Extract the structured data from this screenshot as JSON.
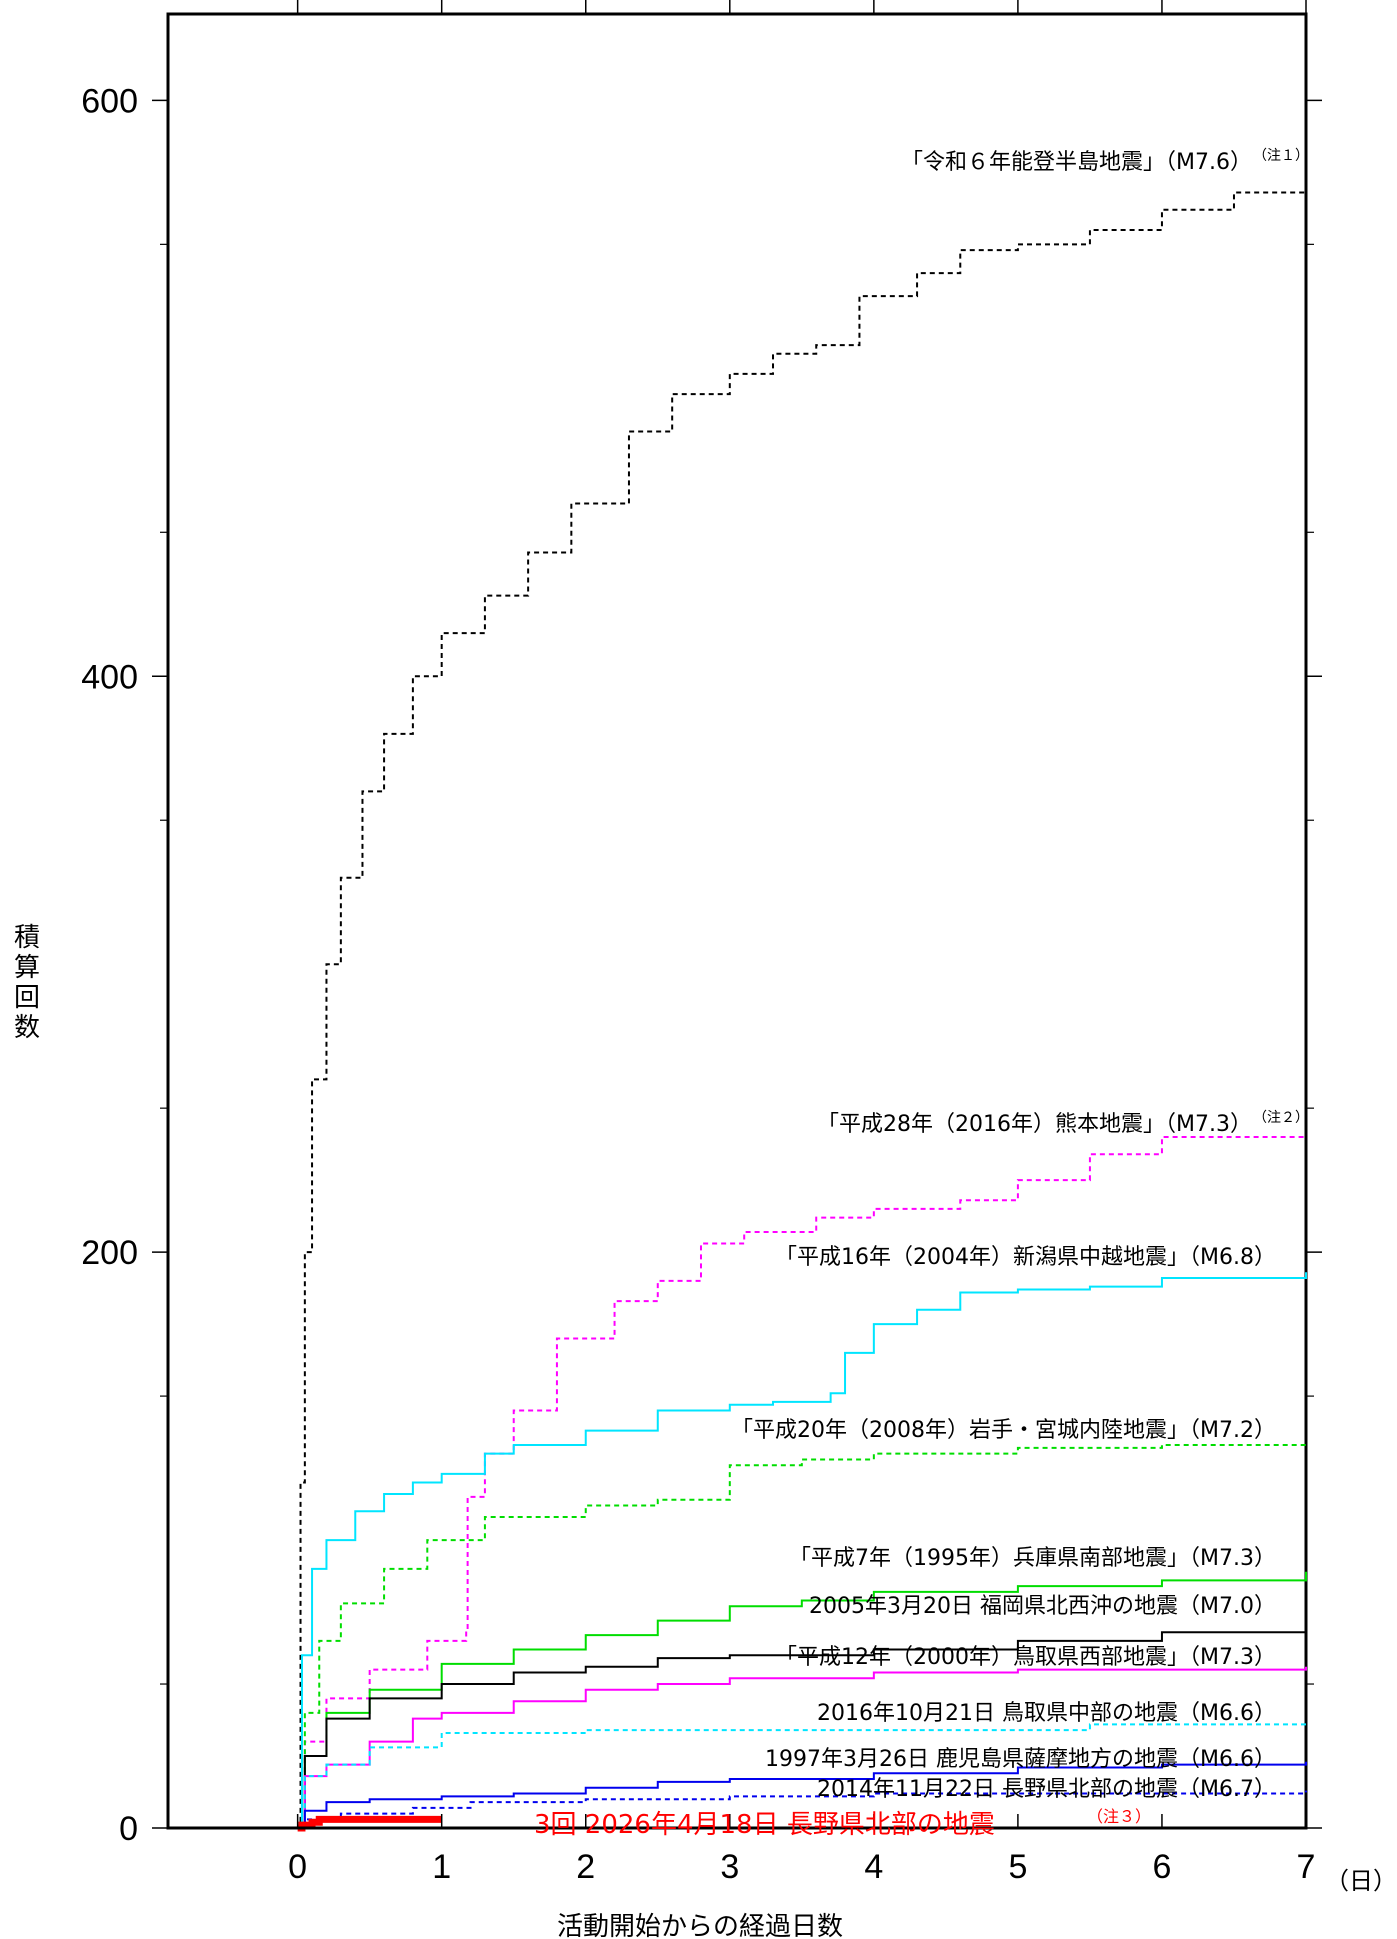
{
  "chart_data": {
    "type": "line",
    "xlabel": "活動開始からの経過日数",
    "xunit": "（日）",
    "ylabel": [
      "積",
      "算",
      "回",
      "数"
    ],
    "xlim": [
      -0.9,
      7
    ],
    "ylim": [
      0,
      630
    ],
    "x_ticks": [
      0,
      1,
      2,
      3,
      4,
      5,
      6,
      7
    ],
    "x_tick_labels": [
      "0",
      "1",
      "2",
      "3",
      "4",
      "5",
      "6",
      "7"
    ],
    "y_ticks": [
      0,
      200,
      400,
      600
    ],
    "y_tick_labels": [
      "0",
      "200",
      "400",
      "600"
    ],
    "grid": false,
    "series": [
      {
        "name": "「令和６年能登半島地震」（M7.6）",
        "note": "（注１）",
        "color": "#000000",
        "dash": "dashed",
        "points": [
          [
            0,
            0
          ],
          [
            0.02,
            120
          ],
          [
            0.05,
            200
          ],
          [
            0.1,
            260
          ],
          [
            0.2,
            300
          ],
          [
            0.3,
            330
          ],
          [
            0.45,
            360
          ],
          [
            0.6,
            380
          ],
          [
            0.8,
            400
          ],
          [
            1.0,
            415
          ],
          [
            1.3,
            428
          ],
          [
            1.6,
            443
          ],
          [
            1.9,
            460
          ],
          [
            2.3,
            485
          ],
          [
            2.6,
            498
          ],
          [
            3.0,
            505
          ],
          [
            3.3,
            512
          ],
          [
            3.6,
            515
          ],
          [
            3.9,
            532
          ],
          [
            4.3,
            540
          ],
          [
            4.6,
            548
          ],
          [
            5.0,
            550
          ],
          [
            5.5,
            555
          ],
          [
            6.0,
            562
          ],
          [
            6.5,
            568
          ],
          [
            7.0,
            571
          ]
        ]
      },
      {
        "name": "「平成28年（2016年）熊本地震」（M7.3）",
        "note": "（注２）",
        "color": "#ff00ff",
        "dash": "dashed",
        "points": [
          [
            0,
            0
          ],
          [
            0.05,
            30
          ],
          [
            0.2,
            45
          ],
          [
            0.5,
            55
          ],
          [
            0.9,
            65
          ],
          [
            1.17,
            69
          ],
          [
            1.18,
            115
          ],
          [
            1.3,
            130
          ],
          [
            1.5,
            145
          ],
          [
            1.8,
            170
          ],
          [
            2.2,
            183
          ],
          [
            2.5,
            190
          ],
          [
            2.8,
            203
          ],
          [
            3.1,
            207
          ],
          [
            3.6,
            212
          ],
          [
            4.0,
            215
          ],
          [
            4.6,
            218
          ],
          [
            5.0,
            225
          ],
          [
            5.5,
            234
          ],
          [
            6.0,
            240
          ],
          [
            7.0,
            240
          ]
        ]
      },
      {
        "name": "「平成16年（2004年）新潟県中越地震」（M6.8）",
        "color": "#00e5ff",
        "dash": "solid",
        "points": [
          [
            0,
            0
          ],
          [
            0.03,
            60
          ],
          [
            0.1,
            90
          ],
          [
            0.2,
            100
          ],
          [
            0.4,
            110
          ],
          [
            0.6,
            116
          ],
          [
            0.8,
            120
          ],
          [
            1.0,
            123
          ],
          [
            1.3,
            130
          ],
          [
            1.5,
            133
          ],
          [
            2.0,
            138
          ],
          [
            2.5,
            145
          ],
          [
            3.0,
            147
          ],
          [
            3.3,
            148
          ],
          [
            3.7,
            151
          ],
          [
            3.8,
            165
          ],
          [
            4.0,
            175
          ],
          [
            4.3,
            180
          ],
          [
            4.6,
            186
          ],
          [
            5.0,
            187
          ],
          [
            5.5,
            188
          ],
          [
            6.0,
            191
          ],
          [
            7.0,
            193
          ]
        ]
      },
      {
        "name": "「平成20年（2008年）岩手・宮城内陸地震」（M7.2）",
        "color": "#00dd00",
        "dash": "dashed",
        "points": [
          [
            0,
            0
          ],
          [
            0.05,
            40
          ],
          [
            0.15,
            65
          ],
          [
            0.3,
            78
          ],
          [
            0.6,
            90
          ],
          [
            0.9,
            100
          ],
          [
            1.3,
            108
          ],
          [
            2.0,
            112
          ],
          [
            2.5,
            114
          ],
          [
            3.0,
            126
          ],
          [
            3.5,
            128
          ],
          [
            4.0,
            130
          ],
          [
            5.0,
            132
          ],
          [
            6.0,
            133
          ],
          [
            7.0,
            134
          ]
        ]
      },
      {
        "name": "「平成7年（1995年）兵庫県南部地震」（M7.3）",
        "color": "#00dd00",
        "dash": "solid",
        "points": [
          [
            0,
            0
          ],
          [
            0.05,
            25
          ],
          [
            0.2,
            40
          ],
          [
            0.5,
            48
          ],
          [
            1.0,
            57
          ],
          [
            1.5,
            62
          ],
          [
            2.0,
            67
          ],
          [
            2.5,
            72
          ],
          [
            3.0,
            77
          ],
          [
            3.5,
            79
          ],
          [
            4.0,
            82
          ],
          [
            5.0,
            84
          ],
          [
            6.0,
            86
          ],
          [
            7.0,
            89
          ]
        ]
      },
      {
        "name": "2005年3月20日 福岡県北西沖の地震（M7.0）",
        "color": "#000000",
        "dash": "solid",
        "points": [
          [
            0,
            0
          ],
          [
            0.05,
            25
          ],
          [
            0.2,
            38
          ],
          [
            0.5,
            45
          ],
          [
            1.0,
            50
          ],
          [
            1.5,
            54
          ],
          [
            2.0,
            56
          ],
          [
            2.5,
            59
          ],
          [
            3.0,
            60
          ],
          [
            4.0,
            62
          ],
          [
            5.0,
            65
          ],
          [
            6.0,
            68
          ],
          [
            7.0,
            72
          ]
        ]
      },
      {
        "name": "「平成12年（2000年）鳥取県西部地震」（M7.3）",
        "color": "#ff00ff",
        "dash": "solid",
        "points": [
          [
            0,
            0
          ],
          [
            0.05,
            18
          ],
          [
            0.2,
            22
          ],
          [
            0.5,
            30
          ],
          [
            0.8,
            38
          ],
          [
            1.0,
            40
          ],
          [
            1.5,
            44
          ],
          [
            2.0,
            48
          ],
          [
            2.5,
            50
          ],
          [
            3.0,
            52
          ],
          [
            4.0,
            54
          ],
          [
            5.0,
            55
          ],
          [
            6.0,
            55
          ],
          [
            7.0,
            56
          ]
        ]
      },
      {
        "name": "2016年10月21日 鳥取県中部の地震（M6.6）",
        "color": "#00e5ff",
        "dash": "dashed",
        "points": [
          [
            0,
            0
          ],
          [
            0.05,
            18
          ],
          [
            0.2,
            22
          ],
          [
            0.5,
            28
          ],
          [
            1.0,
            33
          ],
          [
            2.0,
            34
          ],
          [
            4.0,
            34
          ],
          [
            5.5,
            36
          ],
          [
            7.0,
            37
          ]
        ]
      },
      {
        "name": "1997年3月26日 鹿児島県薩摩地方の地震（M6.6）",
        "color": "#0000ee",
        "dash": "solid",
        "points": [
          [
            0,
            0
          ],
          [
            0.05,
            6
          ],
          [
            0.2,
            9
          ],
          [
            0.5,
            10
          ],
          [
            1.0,
            11
          ],
          [
            1.5,
            12
          ],
          [
            2.0,
            14
          ],
          [
            2.5,
            16
          ],
          [
            3.0,
            17
          ],
          [
            4.0,
            19
          ],
          [
            5.0,
            21
          ],
          [
            6.0,
            22
          ],
          [
            7.0,
            23
          ]
        ]
      },
      {
        "name": "2014年11月22日 長野県北部の地震（M6.7）",
        "color": "#0000ee",
        "dash": "dashed",
        "points": [
          [
            0,
            0
          ],
          [
            0.05,
            3
          ],
          [
            0.3,
            5
          ],
          [
            0.8,
            7
          ],
          [
            1.2,
            9
          ],
          [
            2.0,
            10
          ],
          [
            3.0,
            11
          ],
          [
            4.0,
            12
          ],
          [
            5.0,
            12
          ],
          [
            6.0,
            12
          ],
          [
            7.0,
            13
          ]
        ]
      },
      {
        "name": "3回 2026年4月18日 長野県北部の地震",
        "note": "（注３）",
        "color": "#ff0000",
        "dash": "solid",
        "bold": true,
        "points": [
          [
            0,
            0
          ],
          [
            0.03,
            1
          ],
          [
            0.1,
            2
          ],
          [
            0.15,
            3
          ],
          [
            1.0,
            3
          ]
        ]
      }
    ]
  },
  "annotations": {
    "noto": {
      "text": "「令和６年能登半島地震」（M7.6）",
      "note": "（注１）"
    },
    "kumamoto": {
      "text": "「平成28年（2016年）熊本地震」（M7.3）",
      "note": "（注２）"
    },
    "chuetsu": {
      "text": "「平成16年（2004年）新潟県中越地震」（M6.8）"
    },
    "iwate": {
      "text": "「平成20年（2008年）岩手・宮城内陸地震」（M7.2）"
    },
    "hyogo": {
      "text": "「平成7年（1995年）兵庫県南部地震」（M7.3）"
    },
    "fukuoka": {
      "text": "2005年3月20日 福岡県北西沖の地震（M7.0）"
    },
    "tottori_west": {
      "text": "「平成12年（2000年）鳥取県西部地震」（M7.3）"
    },
    "tottori_central": {
      "text": "2016年10月21日 鳥取県中部の地震（M6.6）"
    },
    "kagoshima": {
      "text": "1997年3月26日 鹿児島県薩摩地方の地震（M6.6）"
    },
    "nagano2014": {
      "text": "2014年11月22日 長野県北部の地震（M6.7）"
    },
    "nagano2026": {
      "text": "3回  2026年4月18日 長野県北部の地震",
      "note": "（注３）",
      "color": "#ff0000"
    }
  }
}
